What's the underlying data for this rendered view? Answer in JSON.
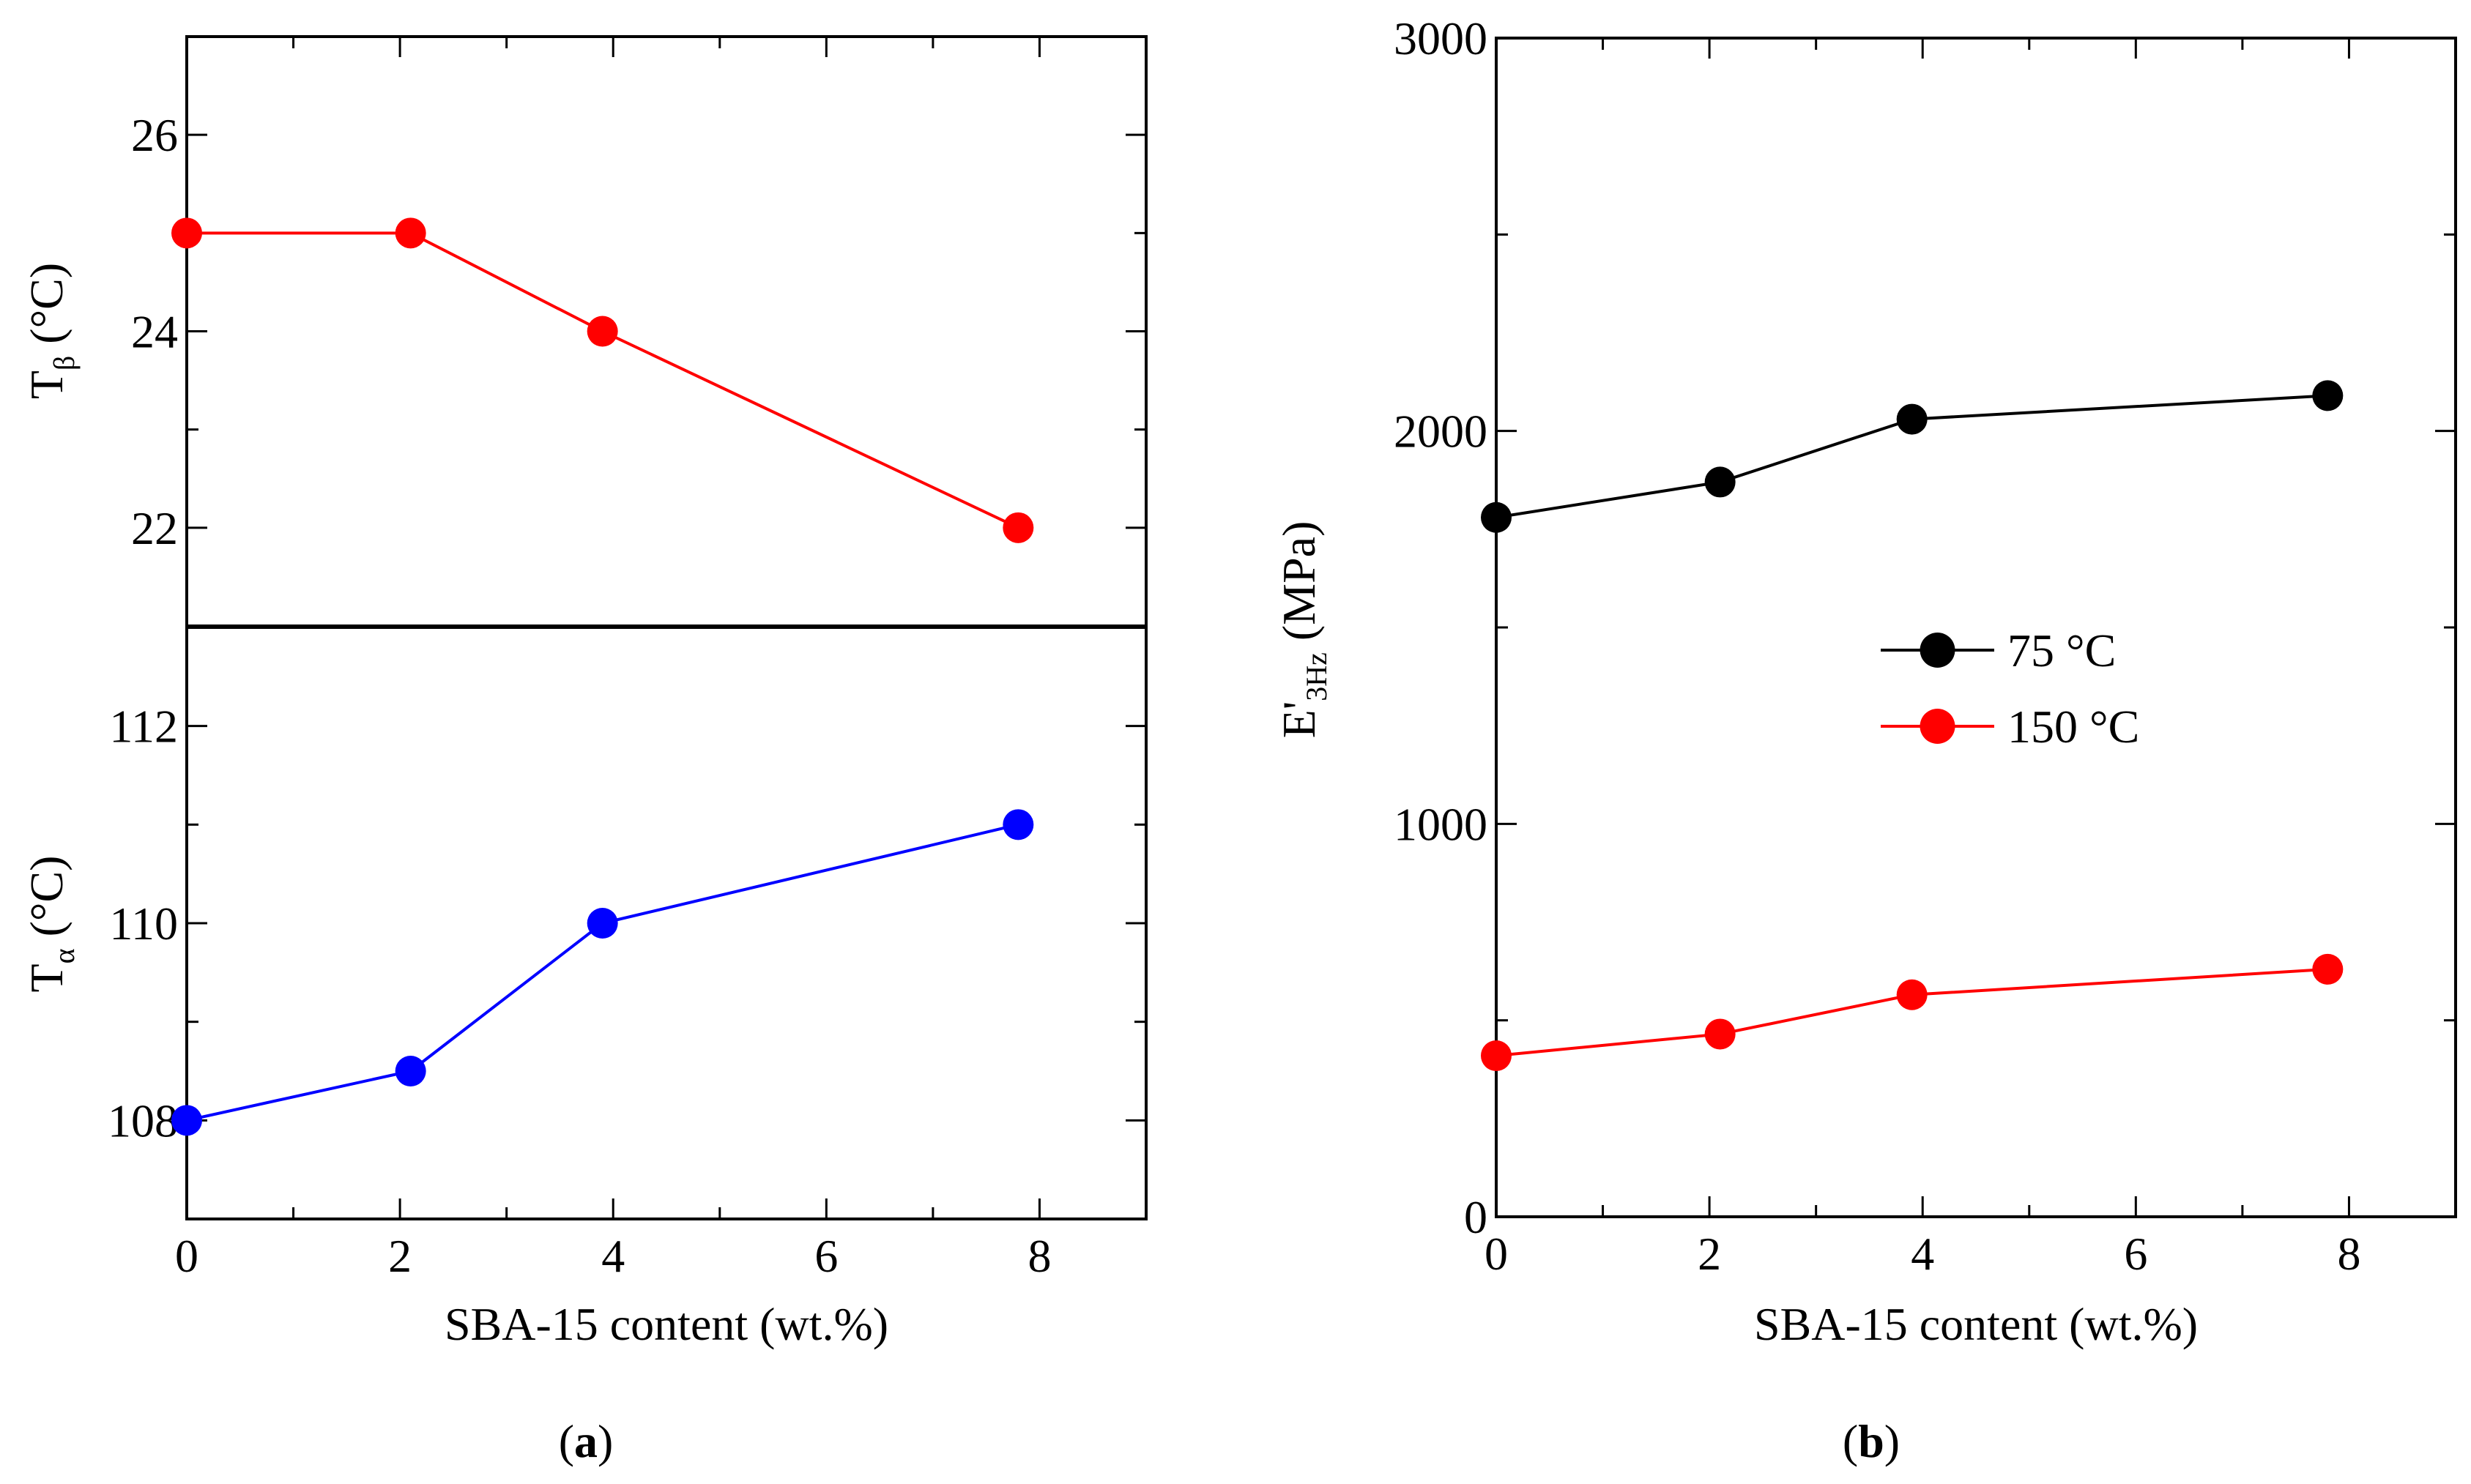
{
  "figure": {
    "panel_a_label": {
      "open": "(",
      "letter": "a",
      "close": ")"
    },
    "panel_b_label": {
      "open": "(",
      "letter": "b",
      "close": ")"
    }
  },
  "chart_data": [
    {
      "id": "a-top",
      "type": "line",
      "title": "",
      "xlabel": "",
      "ylabel": {
        "main": "T",
        "sub": "β",
        "unit": " (°C)"
      },
      "xlim": [
        0,
        9
      ],
      "ylim": [
        21,
        27
      ],
      "xticks": [
        0,
        2,
        4,
        6,
        8
      ],
      "xtick_labels": [],
      "yticks": [
        22,
        24,
        26
      ],
      "ytick_labels": [
        "22",
        "24",
        "26"
      ],
      "series": [
        {
          "name": "Tβ",
          "color": "#ff0000",
          "x": [
            0,
            2.1,
            3.9,
            7.8
          ],
          "y": [
            25,
            25,
            24,
            22
          ]
        }
      ]
    },
    {
      "id": "a-bottom",
      "type": "line",
      "title": "",
      "xlabel": "SBA-15 content (wt.%)",
      "ylabel": {
        "main": "T",
        "sub": "α",
        "unit": " (°C)"
      },
      "xlim": [
        0,
        9
      ],
      "ylim": [
        107,
        113
      ],
      "xticks": [
        0,
        2,
        4,
        6,
        8
      ],
      "xtick_labels": [
        "0",
        "2",
        "4",
        "6",
        "8"
      ],
      "yticks": [
        108,
        110,
        112
      ],
      "ytick_labels": [
        "108",
        "110",
        "112"
      ],
      "series": [
        {
          "name": "Tα",
          "color": "#0000ff",
          "x": [
            0,
            2.1,
            3.9,
            7.8
          ],
          "y": [
            108,
            108.5,
            110,
            111
          ]
        }
      ]
    },
    {
      "id": "b",
      "type": "line",
      "title": "",
      "xlabel": "SBA-15 content (wt.%)",
      "ylabel": {
        "main": "E'",
        "sub": "3Hz",
        "unit": " (MPa)"
      },
      "xlim": [
        0,
        9
      ],
      "ylim": [
        0,
        3000
      ],
      "xticks": [
        0,
        2,
        4,
        6,
        8
      ],
      "xtick_labels": [
        "0",
        "2",
        "4",
        "6",
        "8"
      ],
      "yticks": [
        0,
        1000,
        2000,
        3000
      ],
      "ytick_labels": [
        "0",
        "1000",
        "2000",
        "3000"
      ],
      "legend": "center-right",
      "series": [
        {
          "name": "75 °C",
          "color": "#000000",
          "x": [
            0,
            2.1,
            3.9,
            7.8
          ],
          "y": [
            1780,
            1870,
            2030,
            2090
          ]
        },
        {
          "name": "150 °C",
          "color": "#ff0000",
          "x": [
            0,
            2.1,
            3.9,
            7.8
          ],
          "y": [
            410,
            465,
            565,
            630
          ]
        }
      ]
    }
  ]
}
